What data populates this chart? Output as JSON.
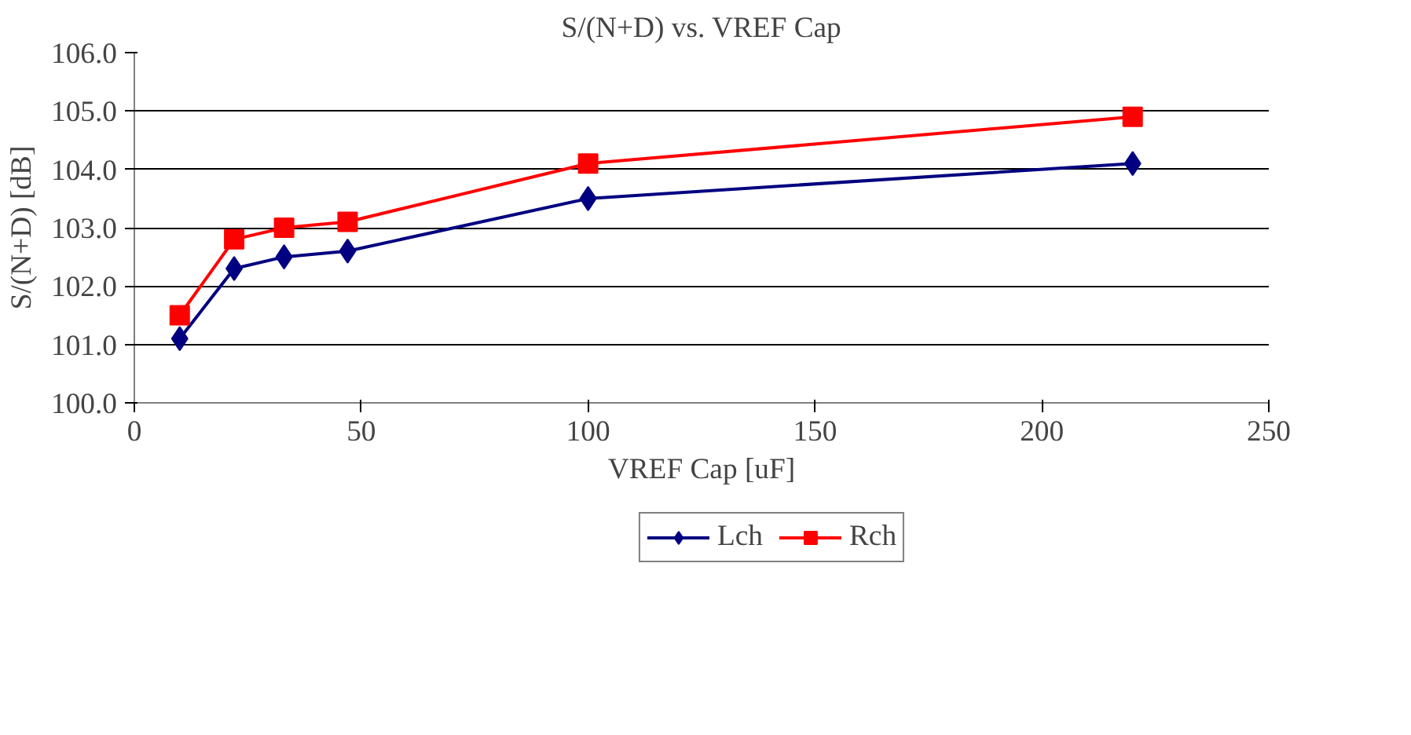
{
  "chart_data": {
    "type": "line",
    "title": "S/(N+D) vs. VREF Cap",
    "xlabel": "VREF Cap [uF]",
    "ylabel": "S/(N+D) [dB]",
    "x": [
      10,
      22,
      33,
      47,
      100,
      220
    ],
    "series": [
      {
        "name": "Lch",
        "color": "#000080",
        "values": [
          101.1,
          102.3,
          102.5,
          102.6,
          103.5,
          104.1
        ],
        "marker": "diamond"
      },
      {
        "name": "Rch",
        "color": "#ff0000",
        "values": [
          101.5,
          102.8,
          103.0,
          103.1,
          104.1,
          104.9
        ],
        "marker": "square"
      }
    ],
    "xlim": [
      0,
      250
    ],
    "xticks": [
      0,
      50,
      100,
      150,
      200,
      250
    ],
    "ylim": [
      100,
      106
    ],
    "yticks": [
      {
        "value": 100,
        "label": "100.0"
      },
      {
        "value": 101,
        "label": "101.0"
      },
      {
        "value": 102,
        "label": "102.0"
      },
      {
        "value": 103,
        "label": "103.0"
      },
      {
        "value": 104,
        "label": "104.0"
      },
      {
        "value": 105,
        "label": "105.0"
      },
      {
        "value": 106,
        "label": "106.0"
      }
    ],
    "grid": "y",
    "legend": "bottom",
    "line_style": "solid"
  }
}
